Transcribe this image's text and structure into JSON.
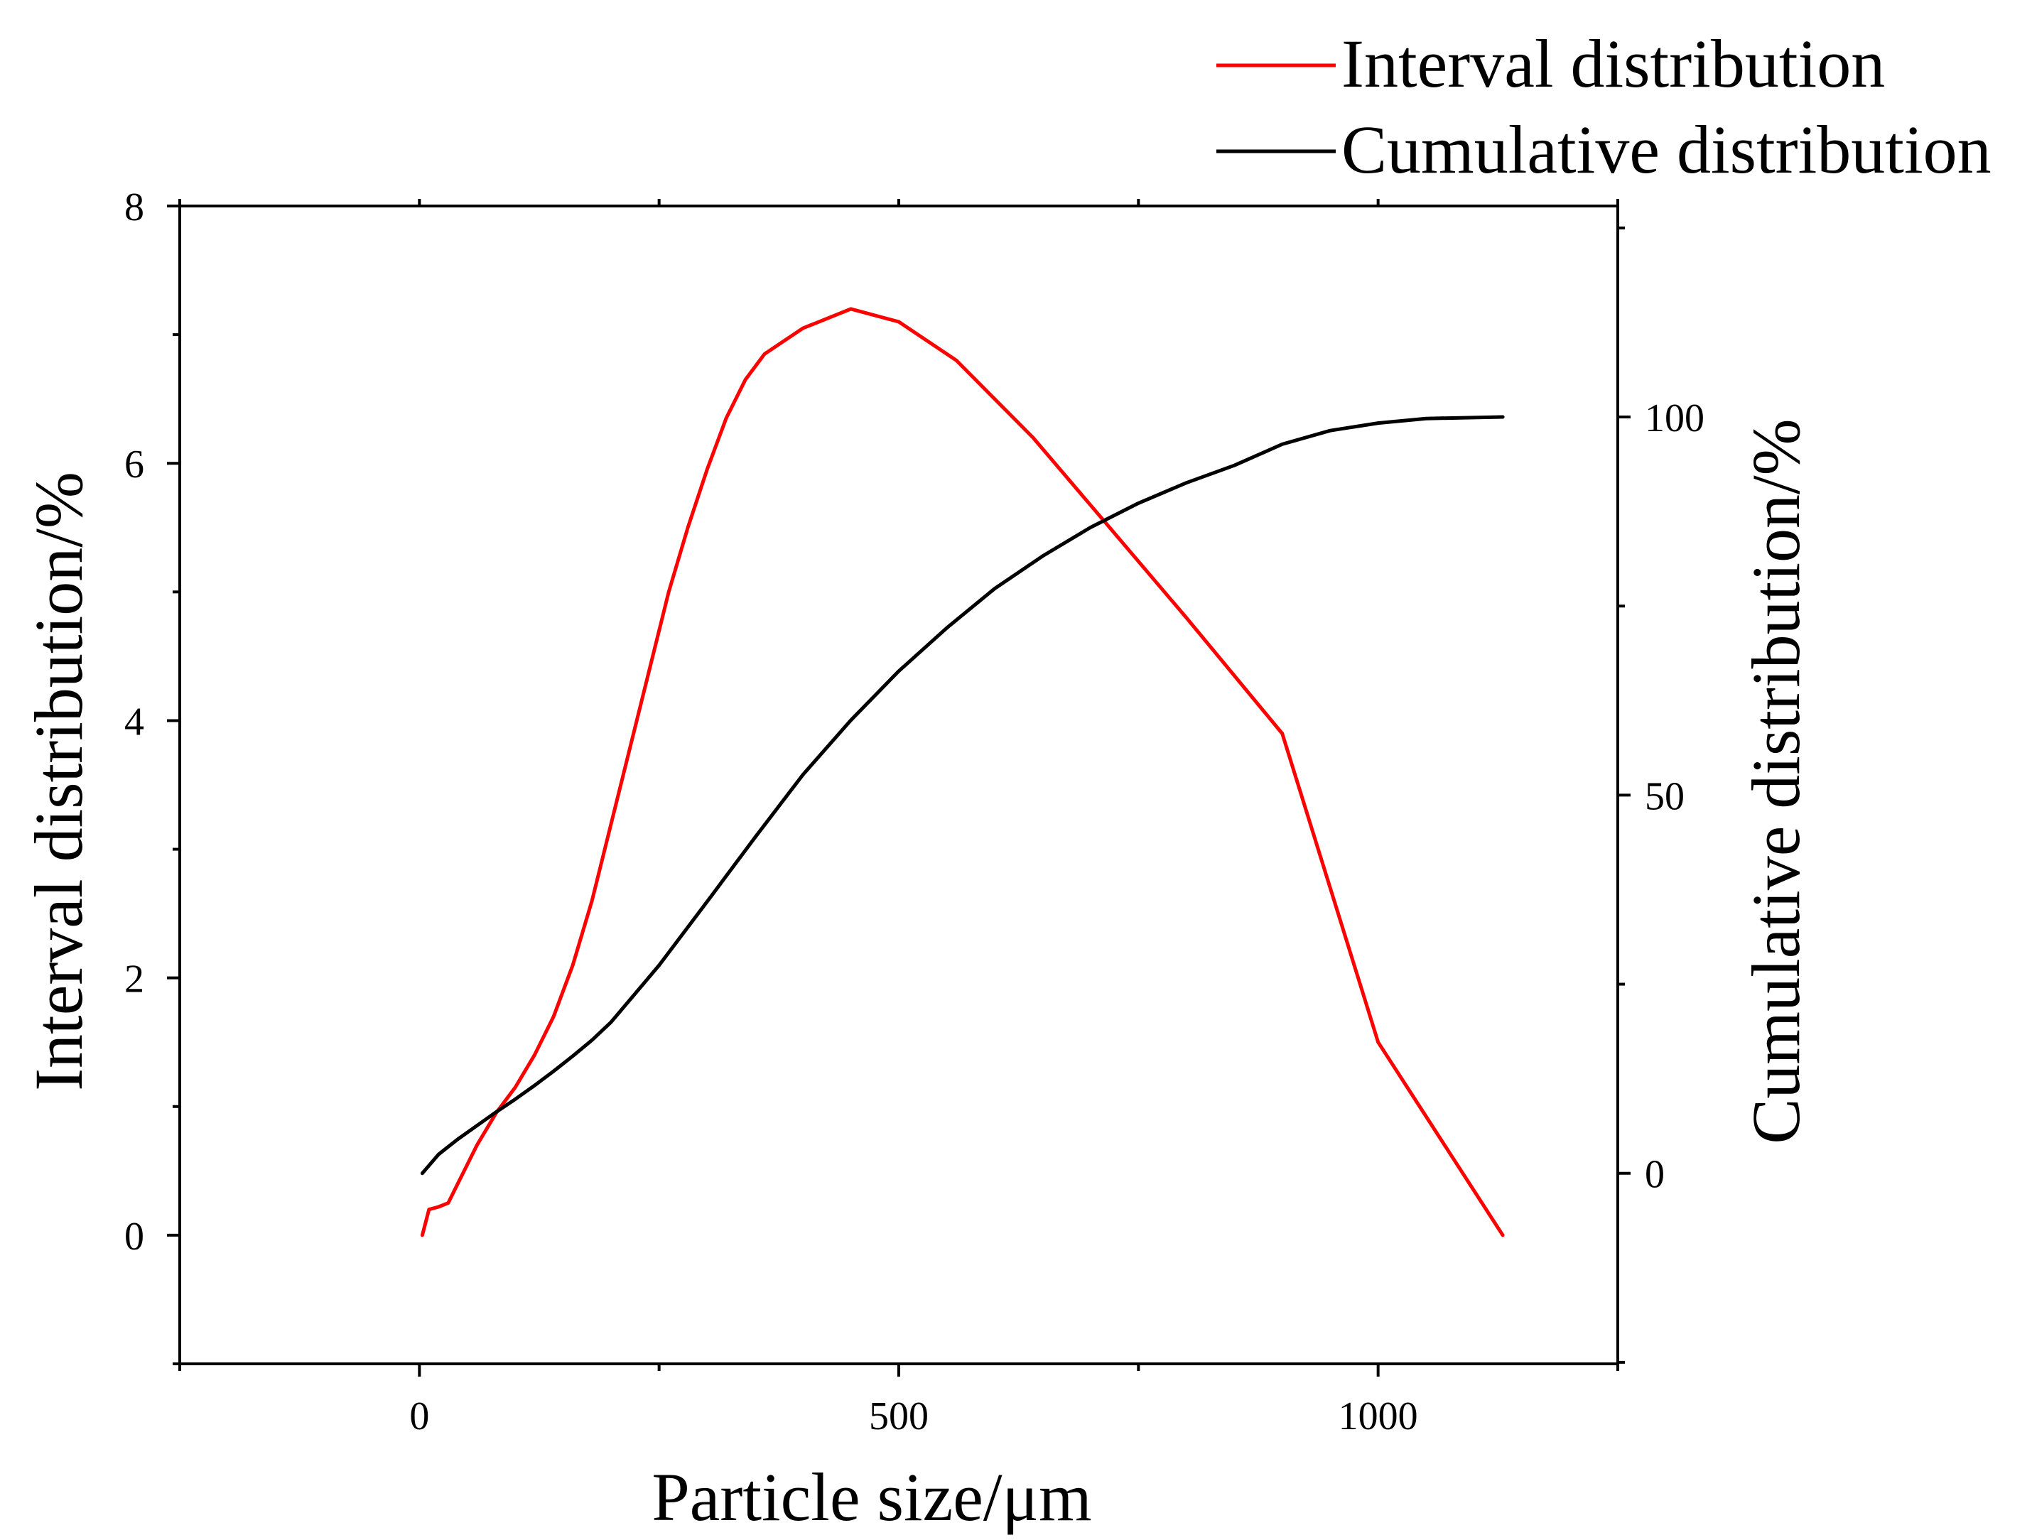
{
  "chart_data": {
    "type": "line",
    "xlabel": "Particle size/μm",
    "ylabel_left": "Interval distribution/%",
    "ylabel_right": "Cumulative distribution/%",
    "xlim": [
      -250,
      1250
    ],
    "ylim_left": [
      -1,
      8
    ],
    "ylim_right": [
      -25.2,
      127.9
    ],
    "x_ticks": [
      0,
      500,
      1000
    ],
    "x_tick_labels": [
      "0",
      "500",
      "1000"
    ],
    "y_left_ticks": [
      0,
      2,
      4,
      6,
      8
    ],
    "y_left_tick_labels": [
      "0",
      "2",
      "4",
      "6",
      "8"
    ],
    "y_right_ticks": [
      0,
      50,
      100
    ],
    "y_right_tick_labels": [
      "0",
      "50",
      "100"
    ],
    "legend_position": "top-right",
    "series": [
      {
        "name": "Interval distribution",
        "color": "#ff0000",
        "axis": "left",
        "x": [
          3,
          10,
          20,
          30,
          40,
          60,
          80,
          100,
          120,
          140,
          160,
          180,
          200,
          220,
          240,
          260,
          280,
          300,
          320,
          340,
          360,
          380,
          400,
          450,
          500,
          560,
          640,
          720,
          800,
          900,
          1000,
          1130
        ],
        "y": [
          0.0,
          0.2,
          0.22,
          0.25,
          0.4,
          0.7,
          0.95,
          1.15,
          1.4,
          1.7,
          2.1,
          2.6,
          3.2,
          3.8,
          4.4,
          5.0,
          5.5,
          5.95,
          6.35,
          6.65,
          6.85,
          6.95,
          7.05,
          7.2,
          7.1,
          6.8,
          6.2,
          5.5,
          4.8,
          3.9,
          1.5,
          0.0
        ]
      },
      {
        "name": "Cumulative distribution",
        "color": "#000000",
        "axis": "right",
        "x": [
          3,
          20,
          40,
          60,
          80,
          100,
          120,
          140,
          160,
          180,
          200,
          250,
          300,
          350,
          400,
          450,
          500,
          550,
          600,
          650,
          700,
          750,
          800,
          850,
          900,
          950,
          1000,
          1050,
          1130
        ],
        "y": [
          0.0,
          2.5,
          4.5,
          6.3,
          8.1,
          9.8,
          11.6,
          13.5,
          15.5,
          17.6,
          20.0,
          27.5,
          35.9,
          44.4,
          52.7,
          59.9,
          66.4,
          72.1,
          77.3,
          81.6,
          85.4,
          88.6,
          91.3,
          93.6,
          96.4,
          98.2,
          99.2,
          99.8,
          100.0
        ]
      }
    ]
  }
}
